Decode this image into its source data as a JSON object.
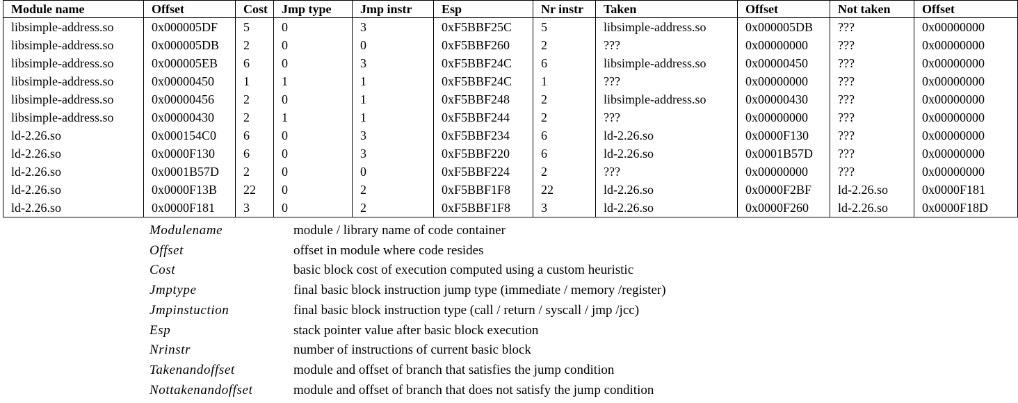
{
  "table": {
    "headers": [
      "Module name",
      "Offset",
      "Cost",
      "Jmp type",
      "Jmp instr",
      "Esp",
      "Nr instr",
      "Taken",
      "Offset",
      "Not taken",
      "Offset"
    ],
    "rows": [
      [
        "libsimple-address.so",
        "0x000005DF",
        "5",
        "0",
        "3",
        "0xF5BBF25C",
        "5",
        "libsimple-address.so",
        "0x000005DB",
        "???",
        "0x00000000"
      ],
      [
        "libsimple-address.so",
        "0x000005DB",
        "2",
        "0",
        "0",
        "0xF5BBF260",
        "2",
        "???",
        "0x00000000",
        "???",
        "0x00000000"
      ],
      [
        "libsimple-address.so",
        "0x000005EB",
        "6",
        "0",
        "3",
        "0xF5BBF24C",
        "6",
        "libsimple-address.so",
        "0x00000450",
        "???",
        "0x00000000"
      ],
      [
        "libsimple-address.so",
        "0x00000450",
        "1",
        "1",
        "1",
        "0xF5BBF24C",
        "1",
        "???",
        "0x00000000",
        "???",
        "0x00000000"
      ],
      [
        "libsimple-address.so",
        "0x00000456",
        "2",
        "0",
        "1",
        "0xF5BBF248",
        "2",
        "libsimple-address.so",
        "0x00000430",
        "???",
        "0x00000000"
      ],
      [
        "libsimple-address.so",
        "0x00000430",
        "2",
        "1",
        "1",
        "0xF5BBF244",
        "2",
        "???",
        "0x00000000",
        "???",
        "0x00000000"
      ],
      [
        "ld-2.26.so",
        "0x000154C0",
        "6",
        "0",
        "3",
        "0xF5BBF234",
        "6",
        "ld-2.26.so",
        "0x0000F130",
        "???",
        "0x00000000"
      ],
      [
        "ld-2.26.so",
        "0x0000F130",
        "6",
        "0",
        "3",
        "0xF5BBF220",
        "6",
        "ld-2.26.so",
        "0x0001B57D",
        "???",
        "0x00000000"
      ],
      [
        "ld-2.26.so",
        "0x0001B57D",
        "2",
        "0",
        "0",
        "0xF5BBF224",
        "2",
        "???",
        "0x00000000",
        "???",
        "0x00000000"
      ],
      [
        "ld-2.26.so",
        "0x0000F13B",
        "22",
        "0",
        "2",
        "0xF5BBF1F8",
        "22",
        "ld-2.26.so",
        "0x0000F2BF",
        "ld-2.26.so",
        "0x0000F181"
      ],
      [
        "ld-2.26.so",
        "0x0000F181",
        "3",
        "0",
        "2",
        "0xF5BBF1F8",
        "3",
        "ld-2.26.so",
        "0x0000F260",
        "ld-2.26.so",
        "0x0000F18D"
      ]
    ]
  },
  "legend": [
    {
      "term": "Modulename",
      "desc": "module / library name of code container"
    },
    {
      "term": "Offset",
      "desc": "offset in module where code resides"
    },
    {
      "term": "Cost",
      "desc": "basic block cost of execution computed using a custom heuristic"
    },
    {
      "term": "Jmptype",
      "desc": "final basic block instruction jump type (immediate / memory /register)"
    },
    {
      "term": "Jmpinstuction",
      "desc": "final basic block instruction type (call / return / syscall / jmp /jcc)"
    },
    {
      "term": "Esp",
      "desc": "stack pointer value after basic block execution"
    },
    {
      "term": "Nrinstr",
      "desc": "number of instructions of current basic block"
    },
    {
      "term": "Takenandoffset",
      "desc": "module and offset of branch that satisfies the jump condition"
    },
    {
      "term": "Nottakenandoffset",
      "desc": "module and offset of branch that does not satisfy the jump condition"
    }
  ]
}
